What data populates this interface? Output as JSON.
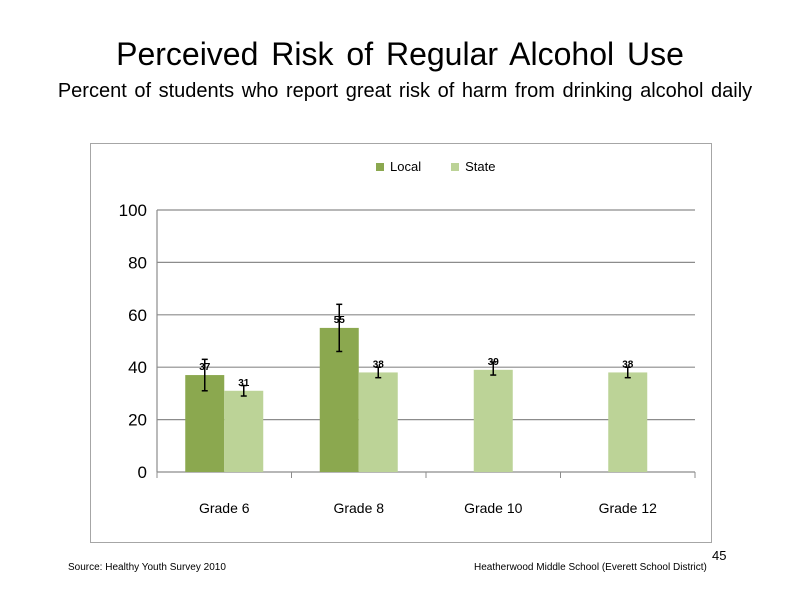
{
  "slide": {
    "title": "Perceived Risk of Regular Alcohol Use",
    "subtitle": "Percent of students who report great risk of harm from drinking alcohol daily",
    "source": "Source: Healthy Youth Survey 2010",
    "school": "Heatherwood Middle School (Everett School District)",
    "page_number": "45"
  },
  "colors": {
    "local": "#8ba84f",
    "state": "#bcd397",
    "grid": "#8c8c8c",
    "error_bar": "#000000"
  },
  "chart_data": {
    "type": "bar",
    "title": "",
    "xlabel": "",
    "ylabel": "",
    "ylim": [
      0,
      100
    ],
    "yticks": [
      0,
      20,
      40,
      60,
      80,
      100
    ],
    "grid": true,
    "legend_position": "top",
    "categories": [
      "Grade 6",
      "Grade 8",
      "Grade 10",
      "Grade 12"
    ],
    "series": [
      {
        "name": "Local",
        "values": [
          37,
          55,
          null,
          null
        ],
        "error_low": [
          31,
          46,
          null,
          null
        ],
        "error_high": [
          43,
          64,
          null,
          null
        ]
      },
      {
        "name": "State",
        "values": [
          31,
          38,
          39,
          38
        ],
        "error_low": [
          29,
          36,
          37,
          36
        ],
        "error_high": [
          33,
          40,
          42,
          40
        ]
      }
    ]
  }
}
